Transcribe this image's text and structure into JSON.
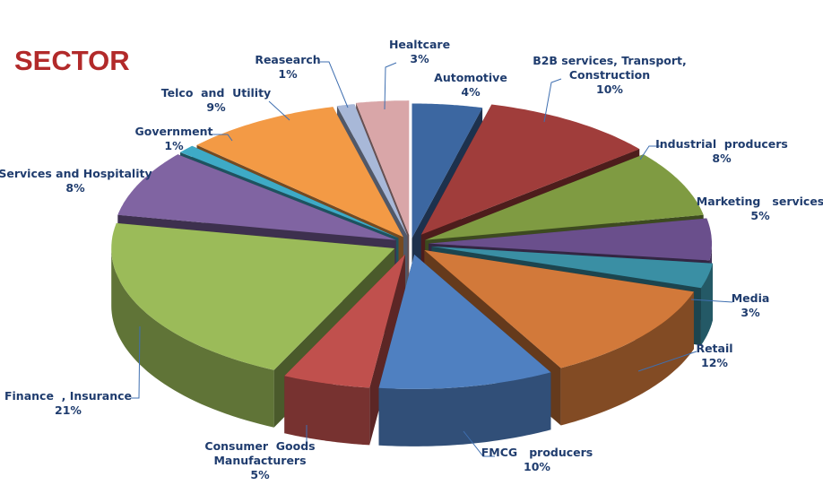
{
  "chart_data": {
    "type": "pie",
    "title": "SECTOR",
    "style": "3d-exploded",
    "legend": "none",
    "slices": [
      {
        "name": "Automotive",
        "value": 4,
        "label": "4%",
        "color": "#3c67a1",
        "label_lines": [
          "Automotive"
        ]
      },
      {
        "name": "B2B services, Transport, Construction",
        "value": 10,
        "label": "10%",
        "color": "#a03d3b",
        "label_lines": [
          "B2B services, Transport,",
          "Construction"
        ]
      },
      {
        "name": "Industrial producers",
        "value": 8,
        "label": "8%",
        "color": "#7f9b42",
        "label_lines": [
          "Industrial  producers"
        ]
      },
      {
        "name": "Marketing services",
        "value": 5,
        "label": "5%",
        "color": "#6a4f8c",
        "label_lines": [
          "Marketing   services"
        ]
      },
      {
        "name": "Media",
        "value": 3,
        "label": "3%",
        "color": "#3a8fa4",
        "label_lines": [
          "Media"
        ]
      },
      {
        "name": "Retail",
        "value": 12,
        "label": "12%",
        "color": "#d2793a",
        "label_lines": [
          "Retail"
        ]
      },
      {
        "name": "FMCG producers",
        "value": 10,
        "label": "10%",
        "color": "#4f80c1",
        "label_lines": [
          "FMCG   producers"
        ]
      },
      {
        "name": "Consumer Goods Manufacturers",
        "value": 5,
        "label": "5%",
        "color": "#c0504d",
        "label_lines": [
          "Consumer  Goods",
          "Manufacturers"
        ]
      },
      {
        "name": "Finance , Insurance",
        "value": 21,
        "label": "21%",
        "color": "#9bbb59",
        "label_lines": [
          "Finance  , Insurance"
        ]
      },
      {
        "name": "Services and Hospitality",
        "value": 8,
        "label": "8%",
        "color": "#8064a2",
        "label_lines": [
          "Services and Hospitality"
        ]
      },
      {
        "name": "Government",
        "value": 1,
        "label": "1%",
        "color": "#3eaac6",
        "label_lines": [
          "Government"
        ]
      },
      {
        "name": "Telco and Utility",
        "value": 9,
        "label": "9%",
        "color": "#f39a45",
        "label_lines": [
          "Telco  and  Utility"
        ]
      },
      {
        "name": "Reasearch",
        "value": 1,
        "label": "1%",
        "color": "#a8b8d8",
        "label_lines": [
          "Reasearch"
        ]
      },
      {
        "name": "Healtcare",
        "value": 3,
        "label": "3%",
        "color": "#d9a6a8",
        "label_lines": [
          "Healtcare"
        ]
      }
    ]
  }
}
